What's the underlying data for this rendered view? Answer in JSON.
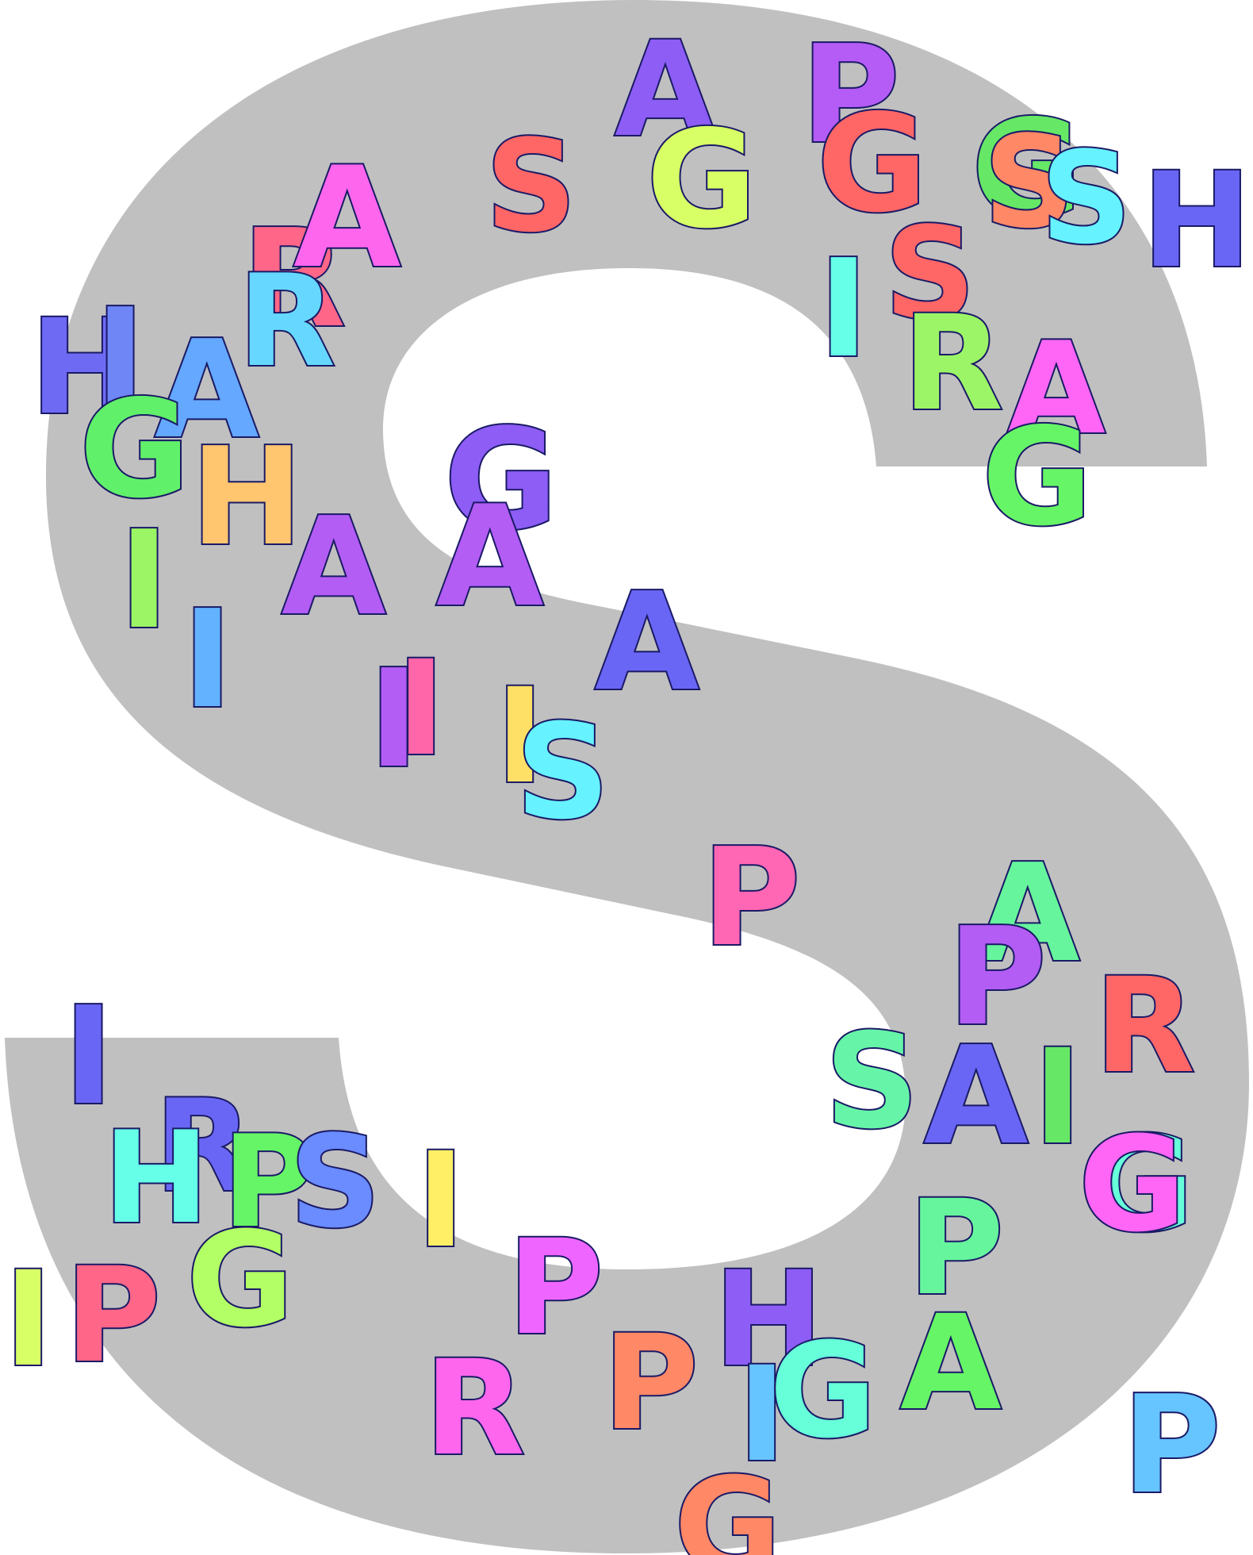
{
  "background_letter": "S",
  "colors": {
    "page": "#ffffff",
    "background_letter": "#c0c0c0",
    "outline": "#1a1a66"
  },
  "letters": [
    {
      "char": "H",
      "color": "#6f6af3"
    },
    {
      "char": "I",
      "color": "#6f87f6"
    },
    {
      "char": "A",
      "color": "#64a8ff"
    },
    {
      "char": "G",
      "color": "#61f06a"
    },
    {
      "char": "H",
      "color": "#ffc56f"
    },
    {
      "char": "I",
      "color": "#9bf564"
    },
    {
      "char": "I",
      "color": "#63b2ff"
    },
    {
      "char": "R",
      "color": "#ff6688"
    },
    {
      "char": "R",
      "color": "#66d8ff"
    },
    {
      "char": "A",
      "color": "#ff66ee"
    },
    {
      "char": "S",
      "color": "#ff6666"
    },
    {
      "char": "A",
      "color": "#8d5df5"
    },
    {
      "char": "G",
      "color": "#d9ff66"
    },
    {
      "char": "P",
      "color": "#b45cf5"
    },
    {
      "char": "G",
      "color": "#ff6666"
    },
    {
      "char": "G",
      "color": "#66e866"
    },
    {
      "char": "S",
      "color": "#ff8866"
    },
    {
      "char": "S",
      "color": "#66f2ff"
    },
    {
      "char": "H",
      "color": "#6a66f5"
    },
    {
      "char": "I",
      "color": "#66ffe8"
    },
    {
      "char": "S",
      "color": "#ff6666"
    },
    {
      "char": "R",
      "color": "#9cf566"
    },
    {
      "char": "A",
      "color": "#ff66f5"
    },
    {
      "char": "G",
      "color": "#66f566"
    },
    {
      "char": "G",
      "color": "#8d5df5"
    },
    {
      "char": "A",
      "color": "#b35df5"
    },
    {
      "char": "A",
      "color": "#b35df5"
    },
    {
      "char": "A",
      "color": "#6a66f5"
    },
    {
      "char": "I",
      "color": "#b35df5"
    },
    {
      "char": "I",
      "color": "#ff66aa"
    },
    {
      "char": "I",
      "color": "#ffe066"
    },
    {
      "char": "S",
      "color": "#66f2ff"
    },
    {
      "char": "P",
      "color": "#ff66b3"
    },
    {
      "char": "A",
      "color": "#66f59c"
    },
    {
      "char": "P",
      "color": "#b35df5"
    },
    {
      "char": "R",
      "color": "#ff6666"
    },
    {
      "char": "S",
      "color": "#66f5a8"
    },
    {
      "char": "A",
      "color": "#6a66f5"
    },
    {
      "char": "I",
      "color": "#66e866"
    },
    {
      "char": "G",
      "color": "#66ffd9"
    },
    {
      "char": "G",
      "color": "#ff66f5"
    },
    {
      "char": "P",
      "color": "#66f59c"
    },
    {
      "char": "A",
      "color": "#66f566"
    },
    {
      "char": "I",
      "color": "#6a66f5"
    },
    {
      "char": "R",
      "color": "#6a66f5"
    },
    {
      "char": "H",
      "color": "#66ffe8"
    },
    {
      "char": "P",
      "color": "#66f566"
    },
    {
      "char": "S",
      "color": "#6a8cff"
    },
    {
      "char": "I",
      "color": "#ffef66"
    },
    {
      "char": "G",
      "color": "#b3ff66"
    },
    {
      "char": "I",
      "color": "#d9ff66"
    },
    {
      "char": "P",
      "color": "#ff6688"
    },
    {
      "char": "P",
      "color": "#ee66ff"
    },
    {
      "char": "R",
      "color": "#ff66ee"
    },
    {
      "char": "P",
      "color": "#ff8866"
    },
    {
      "char": "H",
      "color": "#8d5df5"
    },
    {
      "char": "I",
      "color": "#66c4ff"
    },
    {
      "char": "G",
      "color": "#66ffd9"
    },
    {
      "char": "P",
      "color": "#66c4ff"
    },
    {
      "char": "G",
      "color": "#ff8866"
    }
  ]
}
